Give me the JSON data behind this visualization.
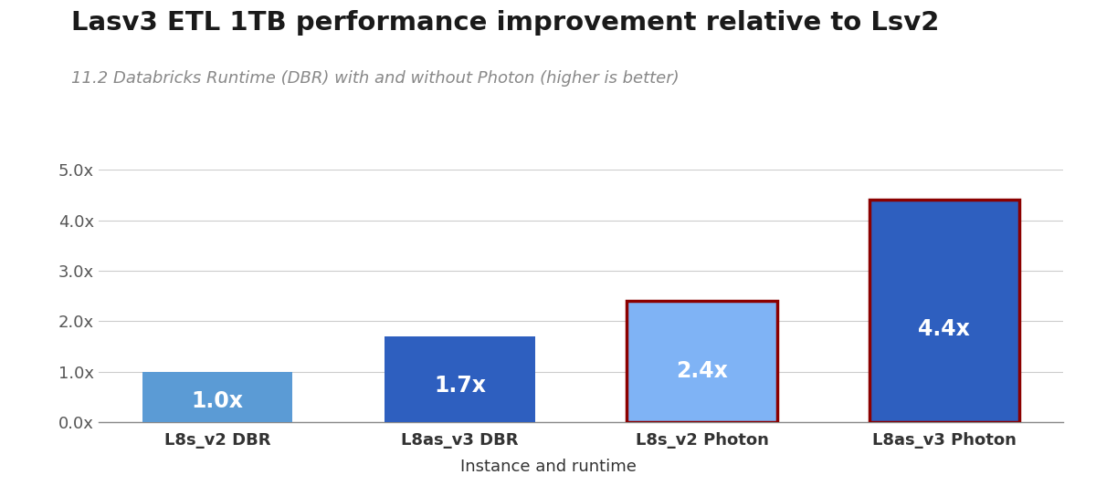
{
  "title": "Lasv3 ETL 1TB performance improvement relative to Lsv2",
  "subtitle": "11.2 Databricks Runtime (DBR) with and without Photon (higher is better)",
  "categories": [
    "L8s_v2 DBR",
    "L8as_v3 DBR",
    "L8s_v2 Photon",
    "L8as_v3 Photon"
  ],
  "values": [
    1.0,
    1.7,
    2.4,
    4.4
  ],
  "bar_colors": [
    "#5B9BD5",
    "#2E5FBF",
    "#7FB3F5",
    "#2E5FBF"
  ],
  "bar_edgecolors": [
    "none",
    "none",
    "#8B0000",
    "#8B0000"
  ],
  "bar_labels": [
    "1.0x",
    "1.7x",
    "2.4x",
    "4.4x"
  ],
  "xlabel": "Instance and runtime",
  "ylim": [
    0,
    5.0
  ],
  "yticks": [
    0.0,
    1.0,
    2.0,
    3.0,
    4.0,
    5.0
  ],
  "ytick_labels": [
    "0.0x",
    "1.0x",
    "2.0x",
    "3.0x",
    "4.0x",
    "5.0x"
  ],
  "title_fontsize": 21,
  "subtitle_fontsize": 13,
  "label_fontsize": 17,
  "tick_fontsize": 13,
  "xlabel_fontsize": 13,
  "background_color": "#FFFFFF",
  "grid_color": "#CCCCCC",
  "title_color": "#1a1a1a",
  "subtitle_color": "#888888",
  "bar_label_color": "#FFFFFF",
  "bar_width": 0.62
}
